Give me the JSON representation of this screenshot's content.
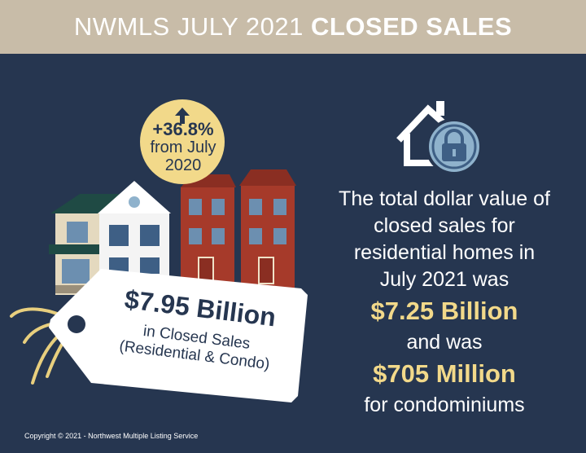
{
  "header": {
    "title_regular": "NWMLS JULY 2021",
    "title_bold": "CLOSED SALES"
  },
  "badge": {
    "change": "+36.8%",
    "line1": "from July",
    "line2": "2020",
    "icon": "arrow-up-icon"
  },
  "price_tag": {
    "amount": "$7.95 Billion",
    "line1": "in Closed Sales",
    "line2": "(Residential & Condo)"
  },
  "summary": {
    "line1": "The total dollar value of",
    "line2": "closed sales for",
    "line3": "residential homes in",
    "line4": "July 2021 was",
    "residential_amount": "$7.25 Billion",
    "line5": "and was",
    "condo_amount": "$705 Million",
    "line6": "for condominiums"
  },
  "footer": {
    "copyright": "Copyright © 2021 - Northwest Multiple Listing Service"
  },
  "colors": {
    "background": "#263650",
    "header": "#c8bca8",
    "accent_gold": "#f2d98a",
    "brick": "#a63a2a"
  }
}
